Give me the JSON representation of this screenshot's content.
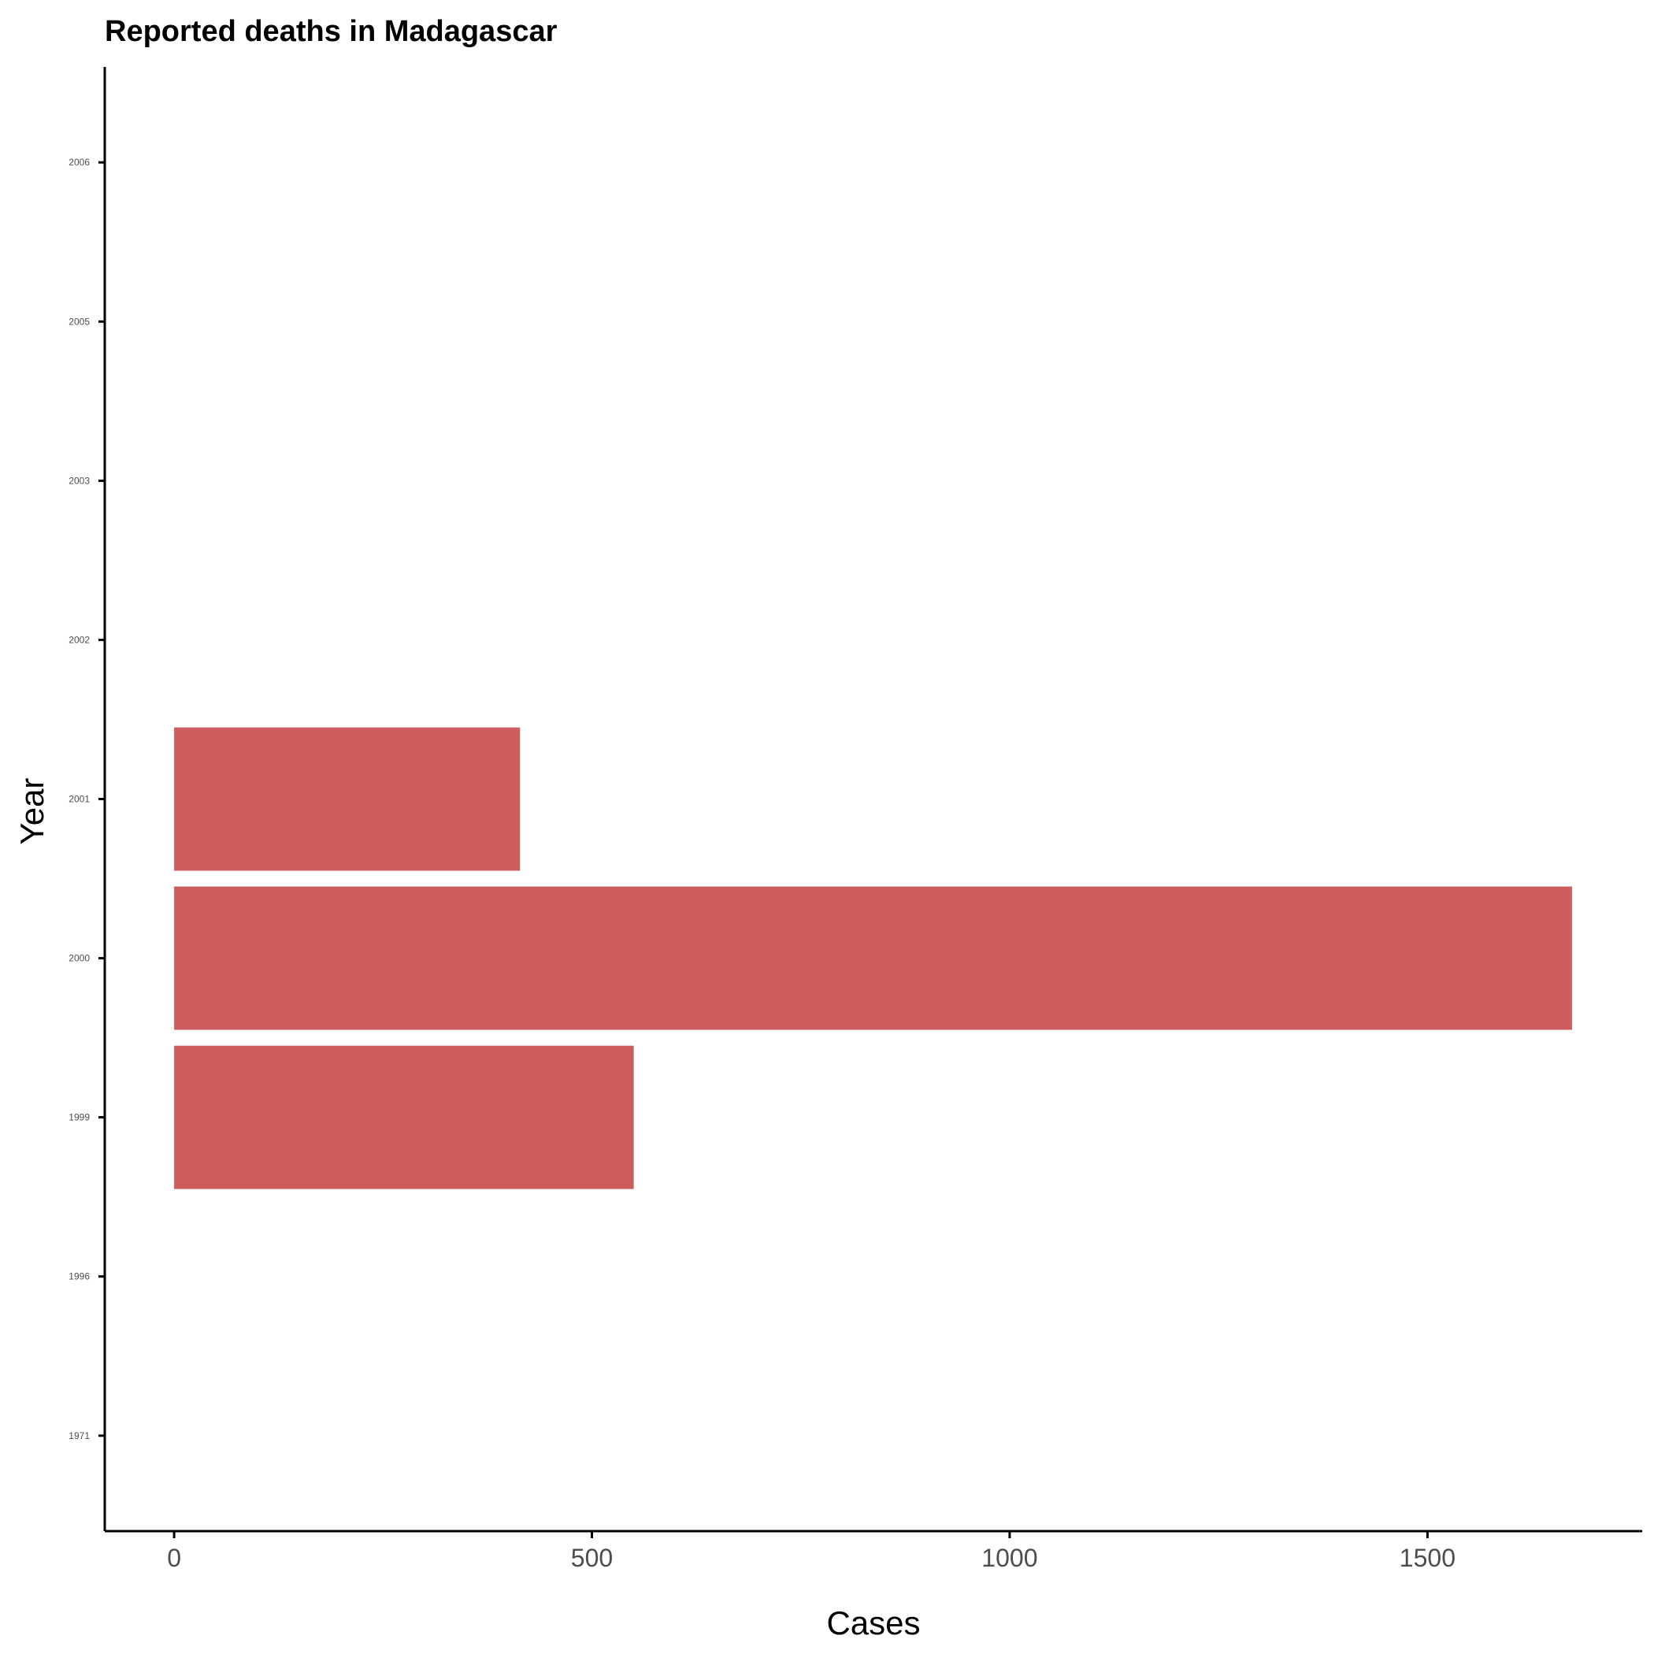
{
  "chart_data": {
    "type": "bar",
    "orientation": "horizontal",
    "title": "Reported deaths in Madagascar",
    "xlabel": "Cases",
    "ylabel": "Year",
    "categories": [
      "1971",
      "1996",
      "1999",
      "2000",
      "2001",
      "2002",
      "2003",
      "2005",
      "2006"
    ],
    "values": [
      0,
      0,
      550,
      1673,
      414,
      0,
      0,
      0,
      0
    ],
    "xlim": [
      -83,
      1757
    ],
    "xticks": [
      0,
      500,
      1000,
      1500
    ],
    "xtick_labels": [
      "0",
      "500",
      "1000",
      "1500"
    ],
    "bar_color": "#cd5c5c",
    "grid": false,
    "legend": "none"
  }
}
